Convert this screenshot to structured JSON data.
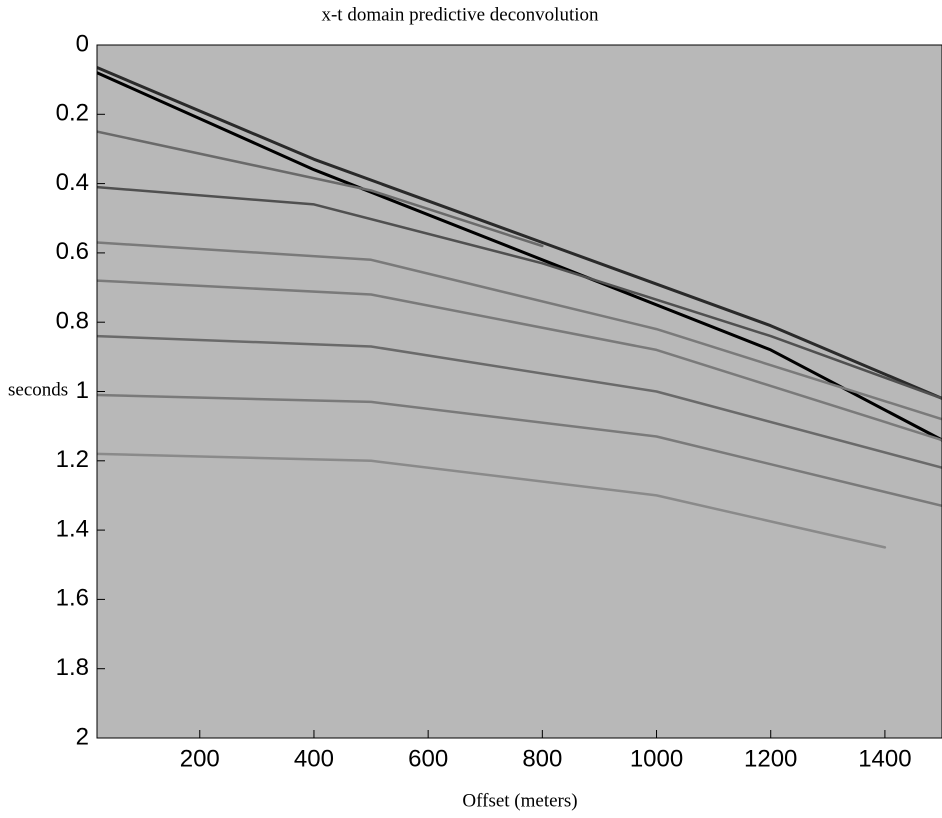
{
  "chart_data": {
    "type": "line",
    "title": "x-t domain predictive deconvolution",
    "x_label": "Offset (meters)",
    "y_label": "seconds",
    "xlim": [
      20,
      1500
    ],
    "ylim": [
      0,
      2
    ],
    "y_reversed": true,
    "xticks": [
      200,
      400,
      600,
      800,
      1000,
      1200,
      1400
    ],
    "yticks": [
      0,
      0.2,
      0.4,
      0.6,
      0.8,
      1,
      1.2,
      1.4,
      1.6,
      1.8,
      2
    ],
    "background": "#b8b8b8",
    "series": [
      {
        "color": "#000000",
        "x": [
          20,
          400,
          800,
          1200,
          1500
        ],
        "values": [
          0.08,
          0.36,
          0.62,
          0.88,
          1.14
        ]
      },
      {
        "color": "#2a2a2a",
        "x": [
          20,
          400,
          800,
          1200,
          1500
        ],
        "values": [
          0.065,
          0.33,
          0.57,
          0.81,
          1.02
        ]
      },
      {
        "color": "#6a6a6a",
        "x": [
          20,
          500,
          800
        ],
        "values": [
          0.25,
          0.42,
          0.58
        ]
      },
      {
        "color": "#505050",
        "x": [
          20,
          400,
          800,
          1200,
          1500
        ],
        "values": [
          0.41,
          0.46,
          0.63,
          0.84,
          1.02
        ]
      },
      {
        "color": "#7a7a7a",
        "x": [
          20,
          500,
          1000,
          1500
        ],
        "values": [
          0.57,
          0.62,
          0.82,
          1.08
        ]
      },
      {
        "color": "#7a7a7a",
        "x": [
          20,
          500,
          1000,
          1500
        ],
        "values": [
          0.68,
          0.72,
          0.88,
          1.14
        ]
      },
      {
        "color": "#6a6a6a",
        "x": [
          20,
          500,
          1000,
          1500
        ],
        "values": [
          0.84,
          0.87,
          1.0,
          1.22
        ]
      },
      {
        "color": "#7a7a7a",
        "x": [
          20,
          500,
          1000,
          1500
        ],
        "values": [
          1.01,
          1.03,
          1.13,
          1.33
        ]
      },
      {
        "color": "#8a8a8a",
        "x": [
          20,
          500,
          1000,
          1400
        ],
        "values": [
          1.18,
          1.2,
          1.3,
          1.45
        ]
      }
    ]
  }
}
